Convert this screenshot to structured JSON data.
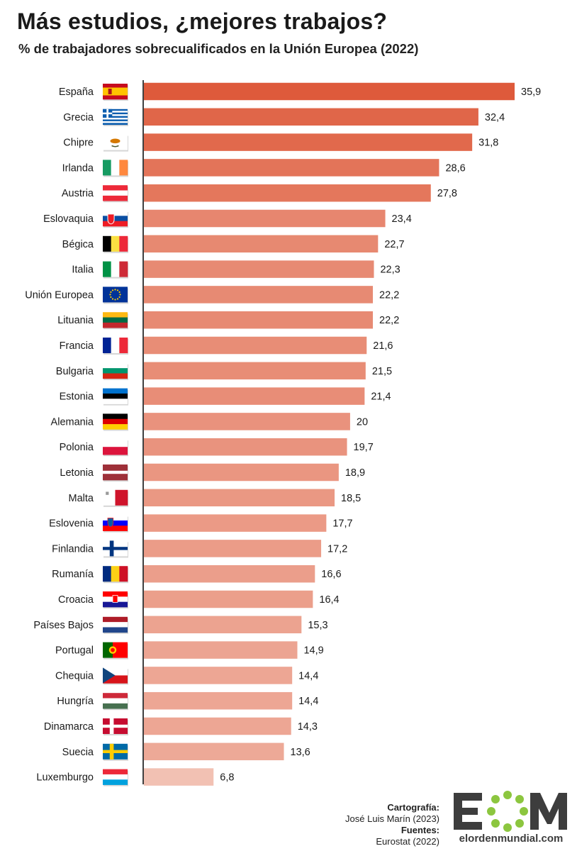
{
  "title": "Más estudios, ¿mejores trabajos?",
  "subtitle": "% de trabajadores sobrecualificados en la Unión Europea (2022)",
  "chart_data": {
    "type": "bar",
    "orientation": "horizontal",
    "categories": [
      "España",
      "Grecia",
      "Chipre",
      "Irlanda",
      "Austria",
      "Eslovaquia",
      "Bégica",
      "Italia",
      "Unión Europea",
      "Lituania",
      "Francia",
      "Bulgaria",
      "Estonia",
      "Alemania",
      "Polonia",
      "Letonia",
      "Malta",
      "Eslovenia",
      "Finlandia",
      "Rumanía",
      "Croacia",
      "Países Bajos",
      "Portugal",
      "Chequia",
      "Hungría",
      "Dinamarca",
      "Suecia",
      "Luxemburgo"
    ],
    "values": [
      35.9,
      32.4,
      31.8,
      28.6,
      27.8,
      23.4,
      22.7,
      22.3,
      22.2,
      22.2,
      21.6,
      21.5,
      21.4,
      20,
      19.7,
      18.9,
      18.5,
      17.7,
      17.2,
      16.6,
      16.4,
      15.3,
      14.9,
      14.4,
      14.4,
      14.3,
      13.6,
      6.8
    ],
    "value_labels": [
      "35,9",
      "32,4",
      "31,8",
      "28,6",
      "27,8",
      "23,4",
      "22,7",
      "22,3",
      "22,2",
      "22,2",
      "21,6",
      "21,5",
      "21,4",
      "20",
      "19,7",
      "18,9",
      "18,5",
      "17,7",
      "17,2",
      "16,6",
      "16,4",
      "15,3",
      "14,9",
      "14,4",
      "14,4",
      "14,3",
      "13,6",
      "6,8"
    ],
    "flags": [
      "spain-flag-icon",
      "greece-flag-icon",
      "cyprus-flag-icon",
      "ireland-flag-icon",
      "austria-flag-icon",
      "slovakia-flag-icon",
      "belgium-flag-icon",
      "italy-flag-icon",
      "eu-flag-icon",
      "lithuania-flag-icon",
      "france-flag-icon",
      "bulgaria-flag-icon",
      "estonia-flag-icon",
      "germany-flag-icon",
      "poland-flag-icon",
      "latvia-flag-icon",
      "malta-flag-icon",
      "slovenia-flag-icon",
      "finland-flag-icon",
      "romania-flag-icon",
      "croatia-flag-icon",
      "netherlands-flag-icon",
      "portugal-flag-icon",
      "czechia-flag-icon",
      "hungary-flag-icon",
      "denmark-flag-icon",
      "sweden-flag-icon",
      "luxembourg-flag-icon"
    ],
    "xlim": [
      0,
      35.9
    ],
    "grid": false,
    "colors": {
      "max": "#de5a3b",
      "min": "#f2c1b3"
    }
  },
  "credits": {
    "heading1": "Cartografía:",
    "line1": "José Luis Marín (2023)",
    "heading2": "Fuentes:",
    "line2": "Eurostat (2022)"
  },
  "logo": {
    "text": "EOM",
    "url": "elordenmundial.com"
  }
}
